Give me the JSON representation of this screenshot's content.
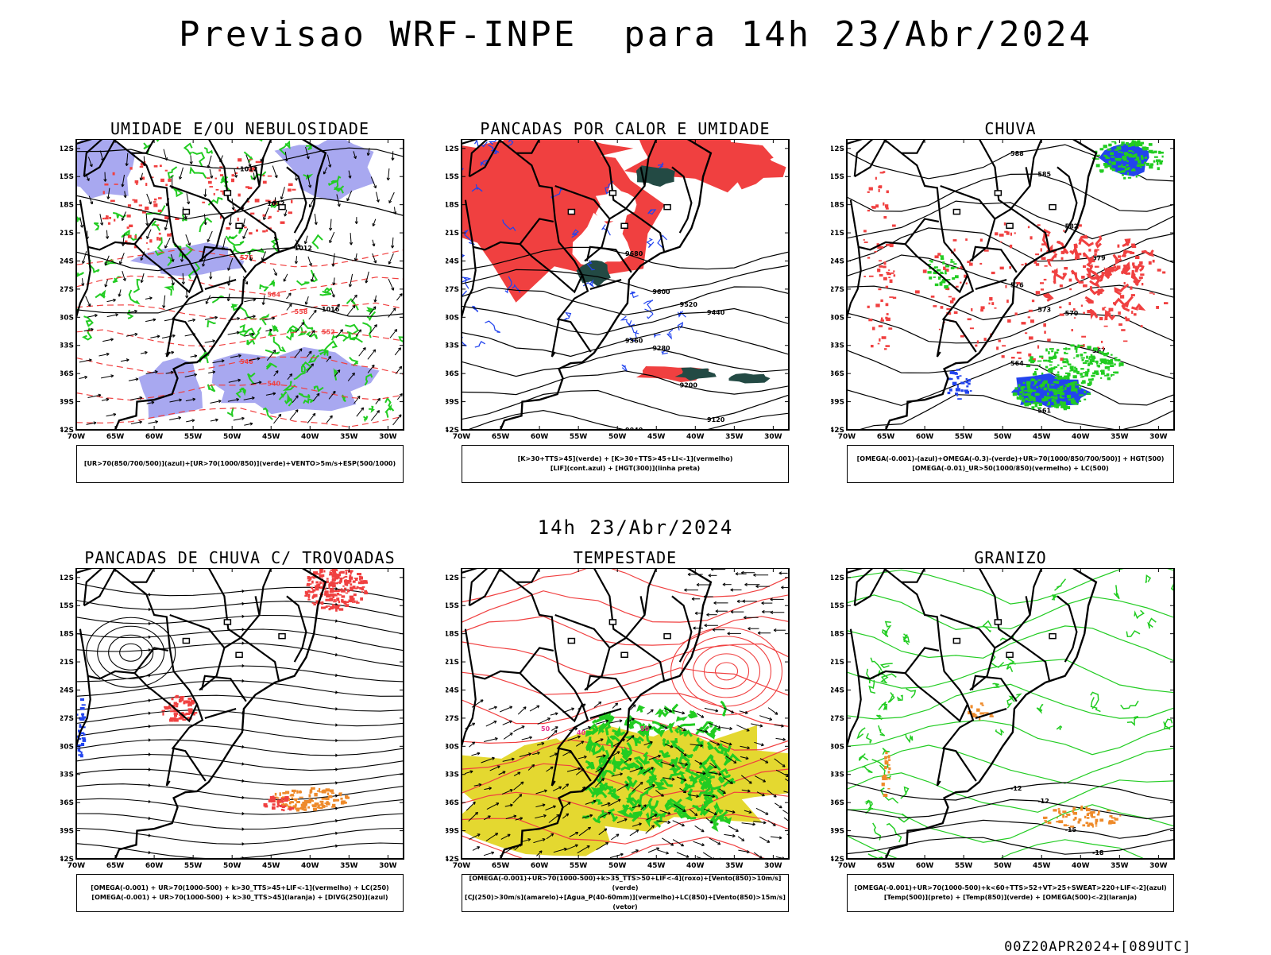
{
  "main_title": "Previsao WRF-INPE  para 14h 23/Abr/2024",
  "mid_title": "14h 23/Abr/2024",
  "footer": "00Z20APR2024+[089UTC]",
  "axes": {
    "lat_labels": [
      "12S",
      "15S",
      "18S",
      "21S",
      "24S",
      "27S",
      "30S",
      "33S",
      "36S",
      "39S",
      "42S"
    ],
    "lon_labels": [
      "70W",
      "65W",
      "60W",
      "55W",
      "50W",
      "45W",
      "40W",
      "35W",
      "30W"
    ]
  },
  "colors": {
    "red": "#f04040",
    "green": "#22cc22",
    "blue": "#2244ee",
    "lavender": "#a8a8f0",
    "dark_teal": "#234a44",
    "yellow": "#e4d830",
    "orange": "#ee8a2a",
    "black": "#000000"
  },
  "panels": [
    {
      "id": "umidade",
      "title": "UMIDADE E/OU NEBULOSIDADE",
      "legend": [
        "[UR>70(850/700/500)](azul)+[UR>70(1000/850)](verde)+VENTO>5m/s+ESP(500/1000)"
      ],
      "contour_labels": [
        "1012",
        "1012",
        "1012",
        "1016",
        "1012",
        "1008",
        "1004",
        "1008",
        "1016",
        "1012",
        "576",
        "564",
        "558",
        "552",
        "546",
        "540"
      ]
    },
    {
      "id": "pancadas-calor",
      "title": "PANCADAS POR CALOR E UMIDADE",
      "legend": [
        "[K>30+TTS>45](verde) + [K>30+TTS>45+LI<-1](vermelho)",
        "[LIF](cont.azul) + [HGT(300)](linha preta)"
      ],
      "contour_labels": [
        "9680",
        "9600",
        "9520",
        "9440",
        "9360",
        "9280",
        "9200",
        "9120",
        "9040"
      ]
    },
    {
      "id": "chuva",
      "title": "CHUVA",
      "legend": [
        "[OMEGA(-0.001)-(azul)+OMEGA(-0.3)-(verde)+UR>70(1000/850/700/500)] + HGT(500)",
        "[OMEGA(-0.01)_UR>50(1000/850)(vermelho) + LC(500)"
      ],
      "contour_labels": [
        "588",
        "585",
        "582",
        "579",
        "576",
        "573",
        "570",
        "567",
        "564",
        "561"
      ]
    },
    {
      "id": "pancadas-trovoadas",
      "title": "PANCADAS DE CHUVA C/ TROVOADAS",
      "legend": [
        "[OMEGA(-0.001) + UR>70(1000-500) + k>30_TTS>45+LIF<-1](vermelho) + LC(250)",
        "[OMEGA(-0.001) + UR>70(1000-500) + k>30_TTS>45](laranja) + [DIVG(250)](azul)"
      ]
    },
    {
      "id": "tempestade",
      "title": "TEMPESTADE",
      "legend": [
        "[OMEGA(-0.001)+UR>70(1000-500)+k>35_TTS>50+LIF<-4](roxo)+[Vento(850)>10m/s](verde)",
        "[CJ(250)>30m/s](amarelo)+[Agua_P(40-60mm)](vermelho)+LC(850)+[Vento(850)>15m/s](vetor)"
      ],
      "contour_labels": [
        "50",
        "40",
        "50"
      ]
    },
    {
      "id": "granizo",
      "title": "GRANIZO",
      "legend": [
        "[OMEGA(-0.001)+UR>70(1000-500)+k<60+TTS>52+VT>25+SWEAT>220+LIF<-2](azul)",
        "[Temp(500)](preto) + [Temp(850)](verde) + [OMEGA(500)<-2](laranja)"
      ],
      "contour_labels": [
        "-12",
        "-12",
        "-15",
        "-18",
        "-21",
        "-15",
        "-18"
      ]
    }
  ]
}
